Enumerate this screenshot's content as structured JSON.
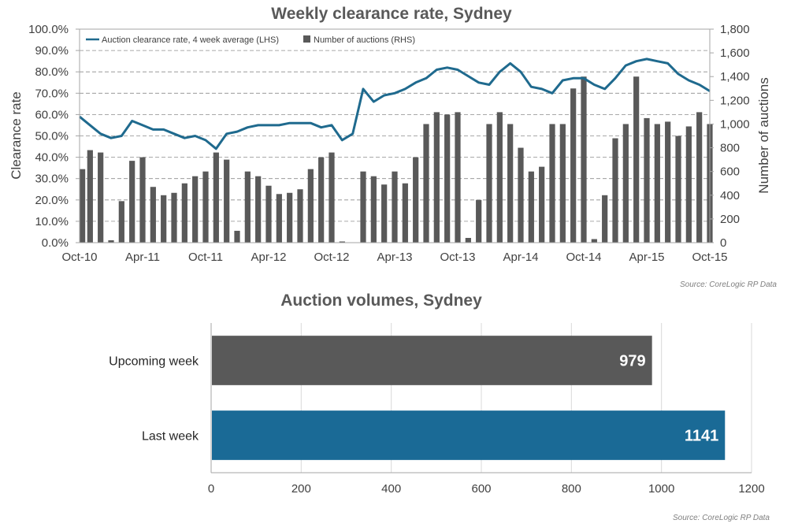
{
  "chart_data": [
    {
      "type": "line",
      "title": "Weekly clearance rate, Sydney",
      "ylabel": "Clearance rate",
      "y2label": "Number of auctions",
      "ylim": [
        0,
        100
      ],
      "y2lim": [
        0,
        1800
      ],
      "y_ticks": [
        "0.0%",
        "10.0%",
        "20.0%",
        "30.0%",
        "40.0%",
        "50.0%",
        "60.0%",
        "70.0%",
        "80.0%",
        "90.0%",
        "100.0%"
      ],
      "y2_ticks": [
        "0",
        "200",
        "400",
        "600",
        "800",
        "1,000",
        "1,200",
        "1,400",
        "1,600",
        "1,800"
      ],
      "x_ticks": [
        "Oct-10",
        "Apr-11",
        "Oct-11",
        "Apr-12",
        "Oct-12",
        "Apr-13",
        "Oct-13",
        "Apr-14",
        "Oct-14",
        "Apr-15",
        "Oct-15"
      ],
      "grid": true,
      "legend_position": "top-left",
      "source": "Source: CoreLogic RP Data",
      "colors": {
        "line": "#1f6a8e",
        "bars": "#595959"
      },
      "series": [
        {
          "name": "Auction clearance rate, 4 week average (LHS)",
          "axis": "left",
          "type": "line",
          "x": [
            "Oct-10",
            "Nov-10",
            "Dec-10",
            "Jan-11",
            "Feb-11",
            "Mar-11",
            "Apr-11",
            "May-11",
            "Jun-11",
            "Jul-11",
            "Aug-11",
            "Sep-11",
            "Oct-11",
            "Nov-11",
            "Dec-11",
            "Jan-12",
            "Feb-12",
            "Mar-12",
            "Apr-12",
            "May-12",
            "Jun-12",
            "Jul-12",
            "Aug-12",
            "Sep-12",
            "Oct-12",
            "Nov-12",
            "Dec-12",
            "Jan-13",
            "Feb-13",
            "Mar-13",
            "Apr-13",
            "May-13",
            "Jun-13",
            "Jul-13",
            "Aug-13",
            "Sep-13",
            "Oct-13",
            "Nov-13",
            "Dec-13",
            "Jan-14",
            "Feb-14",
            "Mar-14",
            "Apr-14",
            "May-14",
            "Jun-14",
            "Jul-14",
            "Aug-14",
            "Sep-14",
            "Oct-14",
            "Nov-14",
            "Dec-14",
            "Jan-15",
            "Feb-15",
            "Mar-15",
            "Apr-15",
            "May-15",
            "Jun-15",
            "Jul-15",
            "Aug-15",
            "Sep-15",
            "Oct-15"
          ],
          "values": [
            59,
            55,
            51,
            49,
            50,
            57,
            55,
            53,
            53,
            51,
            49,
            50,
            48,
            44,
            51,
            52,
            54,
            55,
            55,
            55,
            56,
            56,
            56,
            54,
            55,
            48,
            51,
            72,
            66,
            69,
            70,
            72,
            75,
            77,
            81,
            82,
            81,
            78,
            75,
            74,
            80,
            84,
            80,
            73,
            72,
            70,
            76,
            77,
            77,
            74,
            72,
            77,
            83,
            85,
            86,
            85,
            84,
            79,
            76,
            74,
            71
          ]
        },
        {
          "name": "Number of auctions (RHS)",
          "axis": "right",
          "type": "bar",
          "x": [
            "Oct-10",
            "Nov-10",
            "Dec-10",
            "Jan-11",
            "Feb-11",
            "Mar-11",
            "Apr-11",
            "May-11",
            "Jun-11",
            "Jul-11",
            "Aug-11",
            "Sep-11",
            "Oct-11",
            "Nov-11",
            "Dec-11",
            "Jan-12",
            "Feb-12",
            "Mar-12",
            "Apr-12",
            "May-12",
            "Jun-12",
            "Jul-12",
            "Aug-12",
            "Sep-12",
            "Oct-12",
            "Nov-12",
            "Dec-12",
            "Jan-13",
            "Feb-13",
            "Mar-13",
            "Apr-13",
            "May-13",
            "Jun-13",
            "Jul-13",
            "Aug-13",
            "Sep-13",
            "Oct-13",
            "Nov-13",
            "Dec-13",
            "Jan-14",
            "Feb-14",
            "Mar-14",
            "Apr-14",
            "May-14",
            "Jun-14",
            "Jul-14",
            "Aug-14",
            "Sep-14",
            "Oct-14",
            "Nov-14",
            "Dec-14",
            "Jan-15",
            "Feb-15",
            "Mar-15",
            "Apr-15",
            "May-15",
            "Jun-15",
            "Jul-15",
            "Aug-15",
            "Sep-15",
            "Oct-15"
          ],
          "values": [
            620,
            780,
            760,
            20,
            350,
            690,
            720,
            470,
            400,
            420,
            500,
            560,
            600,
            760,
            700,
            100,
            600,
            560,
            480,
            410,
            420,
            450,
            620,
            720,
            760,
            10,
            0,
            600,
            560,
            490,
            600,
            500,
            720,
            1000,
            1100,
            1080,
            1100,
            40,
            360,
            1000,
            1100,
            1000,
            800,
            600,
            640,
            1000,
            1000,
            1300,
            1400,
            30,
            400,
            880,
            1000,
            1400,
            1050,
            1000,
            1020,
            900,
            980,
            1100,
            1000
          ]
        }
      ]
    },
    {
      "type": "bar",
      "orientation": "horizontal",
      "title": "Auction volumes, Sydney",
      "categories": [
        "Upcoming week",
        "Last week"
      ],
      "values": [
        979,
        1141
      ],
      "value_labels": [
        "979",
        "1141"
      ],
      "xlim": [
        0,
        1200
      ],
      "x_ticks": [
        "0",
        "200",
        "400",
        "600",
        "800",
        "1000",
        "1200"
      ],
      "grid": true,
      "source": "Source: CoreLogic  RP Data",
      "colors": {
        "bars": [
          "#595959",
          "#1a6a96"
        ]
      }
    }
  ]
}
